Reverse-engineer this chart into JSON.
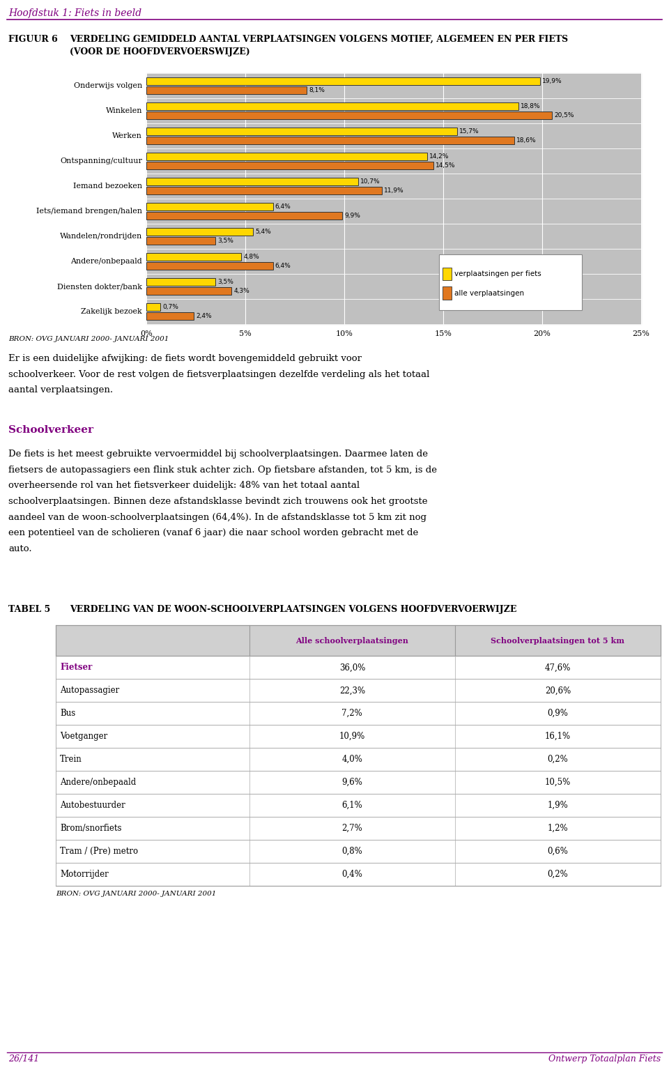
{
  "page_title": "Hoofdstuk 1: Fiets in beeld",
  "fig_label": "FIGUUR 6",
  "fig_title_line1": "VERDELING GEMIDDELD AANTAL VERPLAATSINGEN VOLGENS MOTIEF, ALGEMEEN EN PER FIETS",
  "fig_title_line2": "(VOOR DE HOOFDVERVOERSWIJZE)",
  "categories": [
    "Onderwijs volgen",
    "Winkelen",
    "Werken",
    "Ontspanning/cultuur",
    "Iemand bezoeken",
    "Iets/iemand brengen/halen",
    "Wandelen/rondrijden",
    "Andere/onbepaald",
    "Diensten dokter/bank",
    "Zakelijk bezoek"
  ],
  "values_fiets": [
    19.9,
    18.8,
    15.7,
    14.2,
    10.7,
    6.4,
    5.4,
    4.8,
    3.5,
    0.7
  ],
  "values_alle": [
    8.1,
    20.5,
    18.6,
    14.5,
    11.9,
    9.9,
    3.5,
    6.4,
    4.3,
    2.4
  ],
  "color_fiets": "#FFD700",
  "color_alle": "#E07820",
  "color_chart_bg": "#C0C0C0",
  "xlim_max": 25,
  "xticks": [
    0,
    5,
    10,
    15,
    20,
    25
  ],
  "xlabels": [
    "0%",
    "5%",
    "10%",
    "15%",
    "20%",
    "25%"
  ],
  "legend_fiets": "verplaatsingen per fiets",
  "legend_alle": "alle verplaatsingen",
  "bron_text": "BRON: OVG JANUARI 2000- JANUARI 2001",
  "body_text1_lines": [
    "Er is een duidelijke afwijking: de fiets wordt bovengemiddeld gebruikt voor",
    "schoolverkeer. Voor de rest volgen de fietsverplaatsingen dezelfde verdeling als het totaal",
    "aantal verplaatsingen."
  ],
  "section_title": "Schoolverkeer",
  "body_text2_lines": [
    "De fiets is het meest gebruikte vervoermiddel bij schoolverplaatsingen. Daarmee laten de",
    "fietsers de autopassagiers een flink stuk achter zich. Op fietsbare afstanden, tot 5 km, is de",
    "overheersende rol van het fietsverkeer duidelijk: 48% van het totaal aantal",
    "schoolverplaatsingen. Binnen deze afstandsklasse bevindt zich trouwens ook het grootste",
    "aandeel van de woon-schoolverplaatsingen (64,4%). In de afstandsklasse tot 5 km zit nog",
    "een potentieel van de scholieren (vanaf 6 jaar) die naar school worden gebracht met de",
    "auto."
  ],
  "tabel_label": "TABEL 5",
  "tabel_title": "VERDELING VAN DE WOON-SCHOOLVERPLAATSINGEN VOLGENS HOOFDVERVOERWIJZE",
  "tabel_col1": "Alle schoolverplaatsingen",
  "tabel_col2": "Schoolverplaatsingen tot 5 km",
  "tabel_rows": [
    [
      "Fietser",
      "36,0%",
      "47,6%"
    ],
    [
      "Autopassagier",
      "22,3%",
      "20,6%"
    ],
    [
      "Bus",
      "7,2%",
      "0,9%"
    ],
    [
      "Voetganger",
      "10,9%",
      "16,1%"
    ],
    [
      "Trein",
      "4,0%",
      "0,2%"
    ],
    [
      "Andere/onbepaald",
      "9,6%",
      "10,5%"
    ],
    [
      "Autobestuurder",
      "6,1%",
      "1,9%"
    ],
    [
      "Brom/snorfiets",
      "2,7%",
      "1,2%"
    ],
    [
      "Tram / (Pre) metro",
      "0,8%",
      "0,6%"
    ],
    [
      "Motorrijder",
      "0,4%",
      "0,2%"
    ]
  ],
  "bron_text2": "BRON: OVG JANUARI 2000- JANUARI 2001",
  "footer_left": "26/141",
  "footer_right": "Ontwerp Totaalplan Fiets",
  "purple": "#800080",
  "black": "#000000",
  "white": "#FFFFFF",
  "gray_line": "#888888"
}
